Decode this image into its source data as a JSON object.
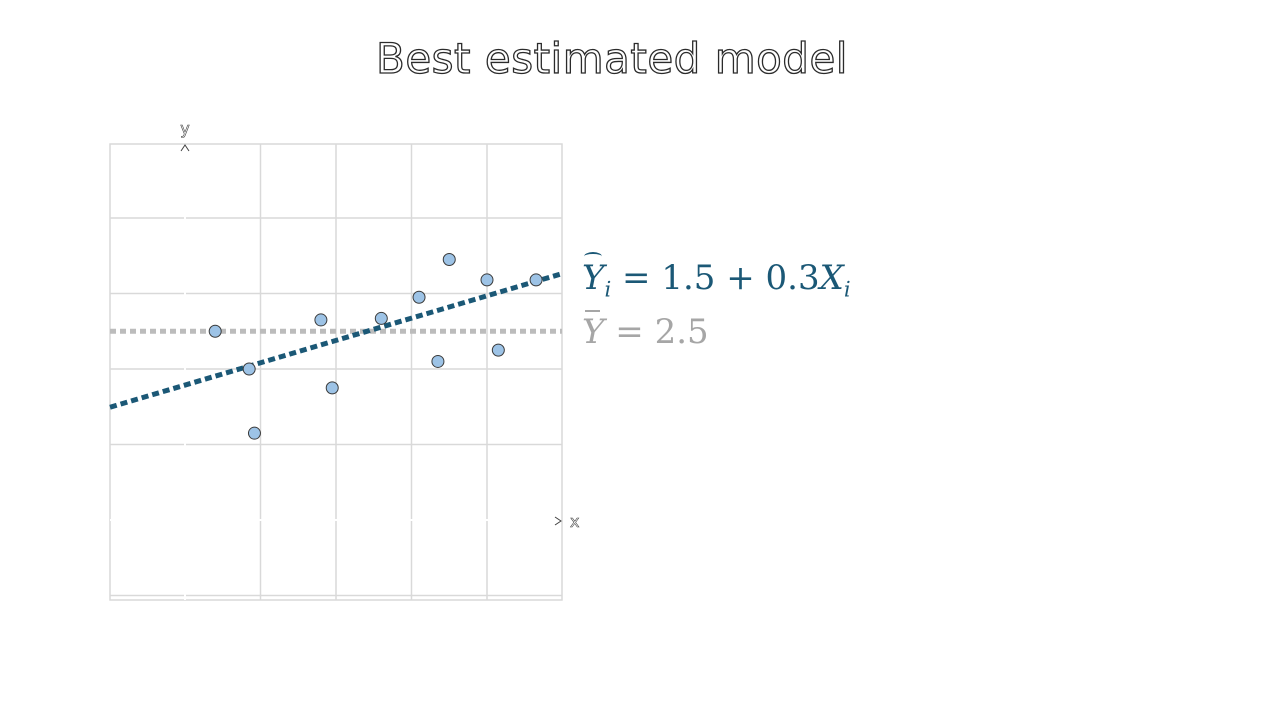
{
  "slide": {
    "title": "Best estimated model"
  },
  "colors": {
    "fit_line": "#1b5876",
    "mean_line": "#bcbcbc",
    "mean_text": "#a6a6a6",
    "point_fill": "#9dc3e6",
    "point_stroke": "#3a3a3a",
    "grid": "#d9d9d9"
  },
  "chart_data": {
    "type": "scatter",
    "title": "",
    "xlabel": "x",
    "ylabel": "y",
    "xlim": [
      0,
      5
    ],
    "ylim": [
      0,
      6
    ],
    "grid": true,
    "points": [
      {
        "x": 0.4,
        "y": 2.5
      },
      {
        "x": 0.85,
        "y": 2.0
      },
      {
        "x": 0.92,
        "y": 1.15
      },
      {
        "x": 1.8,
        "y": 2.65
      },
      {
        "x": 1.95,
        "y": 1.75
      },
      {
        "x": 2.6,
        "y": 2.67
      },
      {
        "x": 3.1,
        "y": 2.95
      },
      {
        "x": 3.35,
        "y": 2.1
      },
      {
        "x": 3.5,
        "y": 3.45
      },
      {
        "x": 4.0,
        "y": 3.18
      },
      {
        "x": 4.15,
        "y": 2.25
      },
      {
        "x": 4.65,
        "y": 3.18
      }
    ],
    "fit_line": {
      "intercept": 1.5,
      "slope": 0.3
    },
    "mean_y": 2.5
  },
  "equations": {
    "model": {
      "lhs_symbol": "Y",
      "lhs_subscript": "i",
      "equals": "=",
      "intercept": "1.5",
      "plus": "+",
      "slope": "0.3",
      "rhs_symbol": "X",
      "rhs_subscript": "i"
    },
    "mean": {
      "symbol": "Y",
      "equals": "=",
      "value": "2.5"
    }
  }
}
